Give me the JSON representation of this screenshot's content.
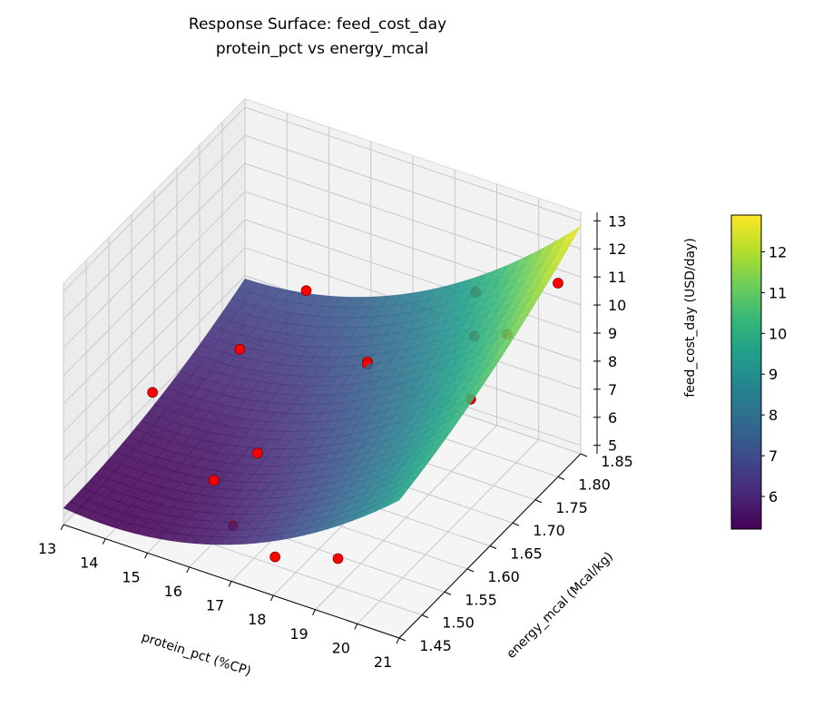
{
  "chart_data": {
    "type": "surface",
    "title": "Response Surface: feed_cost_day",
    "subtitle": "protein_pct vs energy_mcal",
    "xlabel": "protein_pct (%CP)",
    "ylabel": "energy_mcal (Mcal/kg)",
    "zlabel": "feed_cost_day (USD/day)",
    "xlim": [
      13,
      21
    ],
    "ylim": [
      1.45,
      1.85
    ],
    "zlim": [
      4.7,
      13.3
    ],
    "x_ticks": [
      "13",
      "14",
      "15",
      "16",
      "17",
      "18",
      "19",
      "20",
      "21"
    ],
    "y_ticks": [
      "1.45",
      "1.50",
      "1.55",
      "1.60",
      "1.65",
      "1.70",
      "1.75",
      "1.80",
      "1.85"
    ],
    "z_ticks": [
      "5",
      "6",
      "7",
      "8",
      "9",
      "10",
      "11",
      "12",
      "13"
    ],
    "colormap": "viridis",
    "colorbar": {
      "range": [
        5.2,
        12.9
      ],
      "ticks": [
        "6",
        "7",
        "8",
        "9",
        "10",
        "11",
        "12"
      ]
    },
    "grid": true,
    "surface_model": "5.2 + 0.09*(p-14)^2 + 10*(e-1.45)^2 + 0.5*(p-13)*(e-1.45)",
    "points": [
      {
        "protein": 13.5,
        "energy": 1.6,
        "cost": 7.2
      },
      {
        "protein": 14.5,
        "energy": 1.7,
        "cost": 7.6
      },
      {
        "protein": 15.0,
        "energy": 1.8,
        "cost": 8.3
      },
      {
        "protein": 15.5,
        "energy": 1.55,
        "cost": 5.9
      },
      {
        "protein": 16.0,
        "energy": 1.6,
        "cost": 6.3
      },
      {
        "protein": 16.5,
        "energy": 1.5,
        "cost": 5.6
      },
      {
        "protein": 17.0,
        "energy": 1.75,
        "cost": 7.6
      },
      {
        "protein": 17.0,
        "energy": 1.75,
        "cost": 7.5
      },
      {
        "protein": 17.5,
        "energy": 1.5,
        "cost": 5.0
      },
      {
        "protein": 19.0,
        "energy": 1.5,
        "cost": 5.7
      },
      {
        "protein": 18.5,
        "energy": 1.85,
        "cost": 9.2
      },
      {
        "protein": 19.0,
        "energy": 1.8,
        "cost": 8.7
      },
      {
        "protein": 20.0,
        "energy": 1.7,
        "cost": 8.6
      },
      {
        "protein": 20.0,
        "energy": 1.78,
        "cost": 9.6
      },
      {
        "protein": 21.0,
        "energy": 1.8,
        "cost": 11.6
      }
    ],
    "point_color": "#ff0000"
  }
}
